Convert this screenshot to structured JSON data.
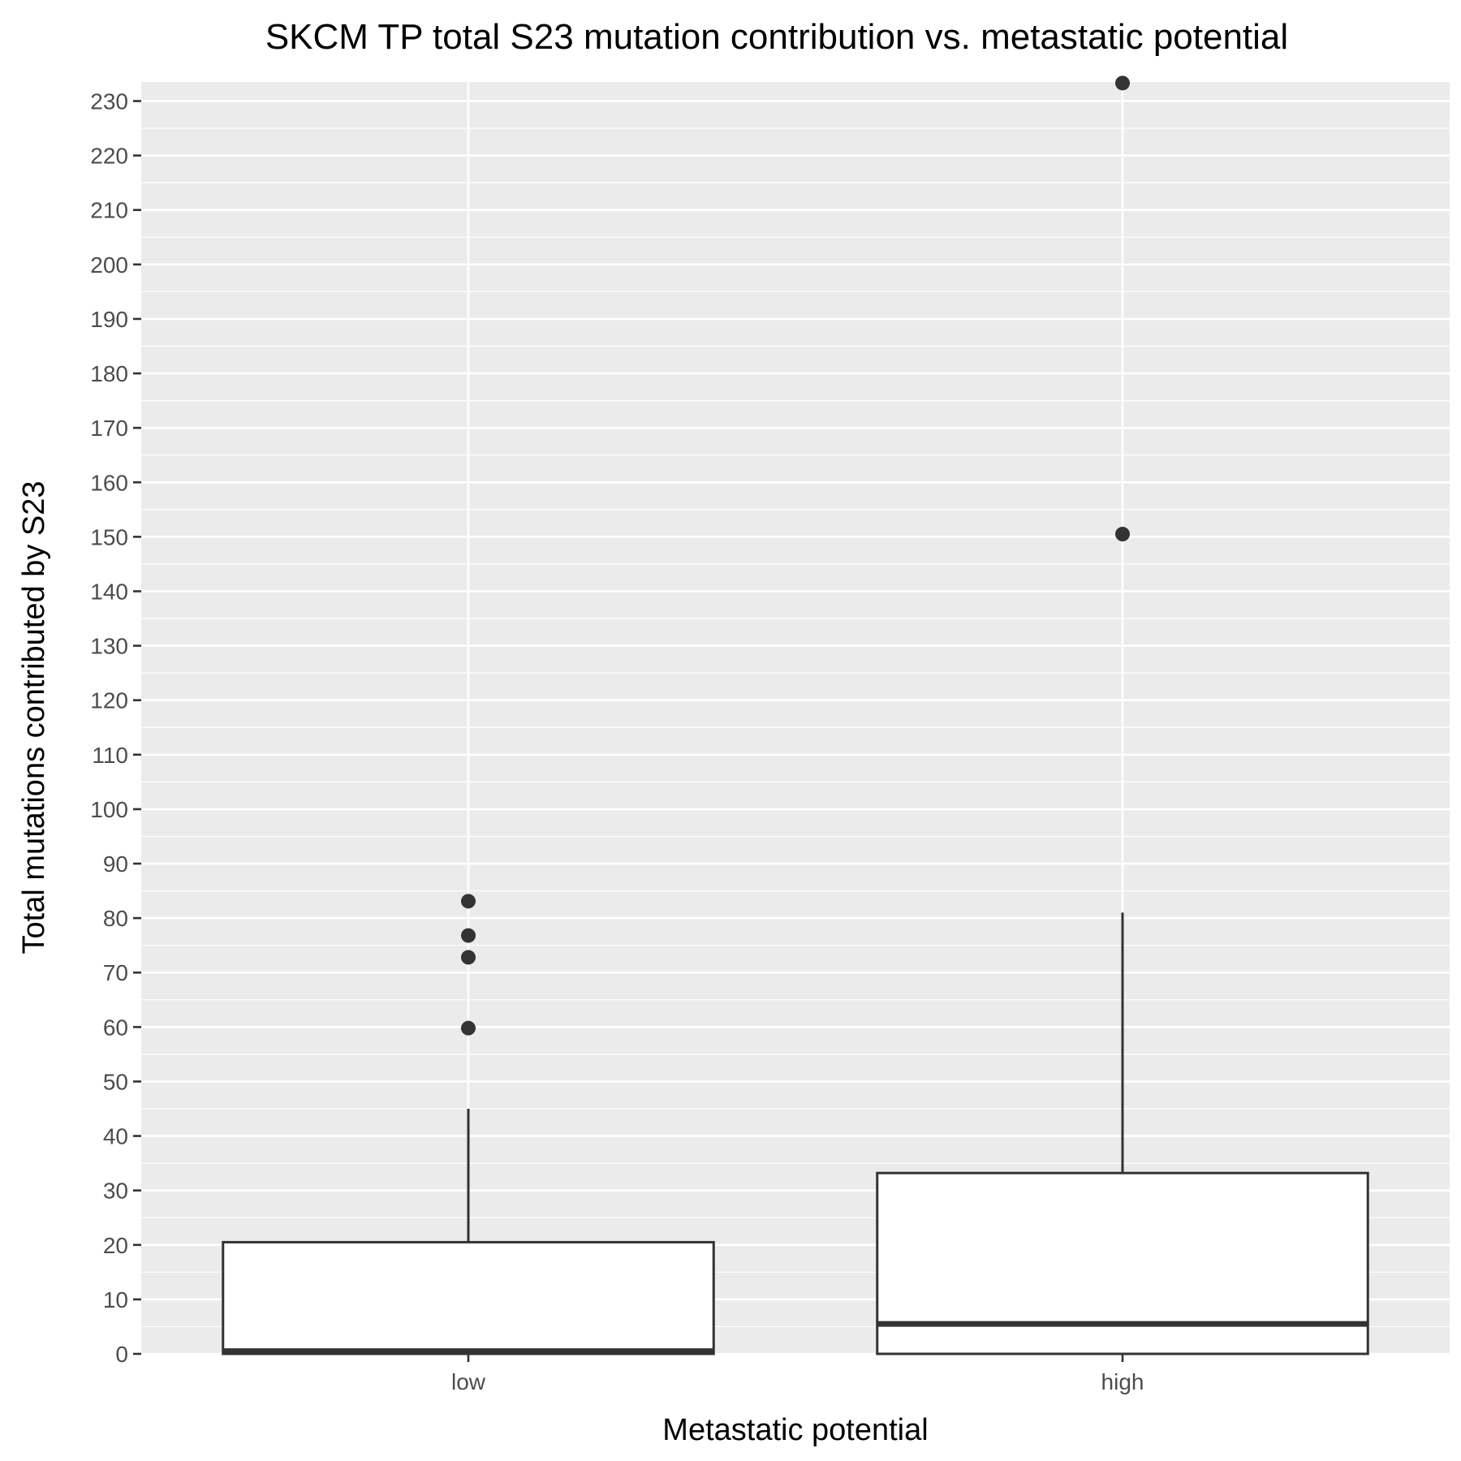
{
  "chart_data": {
    "type": "boxplot",
    "title": "SKCM TP total S23 mutation contribution vs. metastatic potential",
    "xlabel": "Metastatic potential",
    "ylabel": "Total mutations contributed by S23",
    "categories": [
      "low",
      "high"
    ],
    "ylim": [
      0,
      233.5
    ],
    "yticks": [
      0,
      10,
      20,
      30,
      40,
      50,
      60,
      70,
      80,
      90,
      100,
      110,
      120,
      130,
      140,
      150,
      160,
      170,
      180,
      190,
      200,
      210,
      220,
      230
    ],
    "grid": true,
    "boxes": [
      {
        "category": "low",
        "whisker_low": 0,
        "q1": 0,
        "median": 0.5,
        "q3": 20.5,
        "whisker_high": 45,
        "outliers": [
          59.8,
          72.8,
          76.8,
          83.1
        ]
      },
      {
        "category": "high",
        "whisker_low": 0,
        "q1": 0,
        "median": 5.5,
        "q3": 33.2,
        "whisker_high": 81,
        "outliers": [
          150.5,
          233.3
        ]
      }
    ],
    "colors": {
      "panel": "#ebebeb",
      "grid": "#ffffff",
      "box_fill": "#ffffff",
      "box_stroke": "#333333",
      "text": "#4d4d4d"
    }
  }
}
